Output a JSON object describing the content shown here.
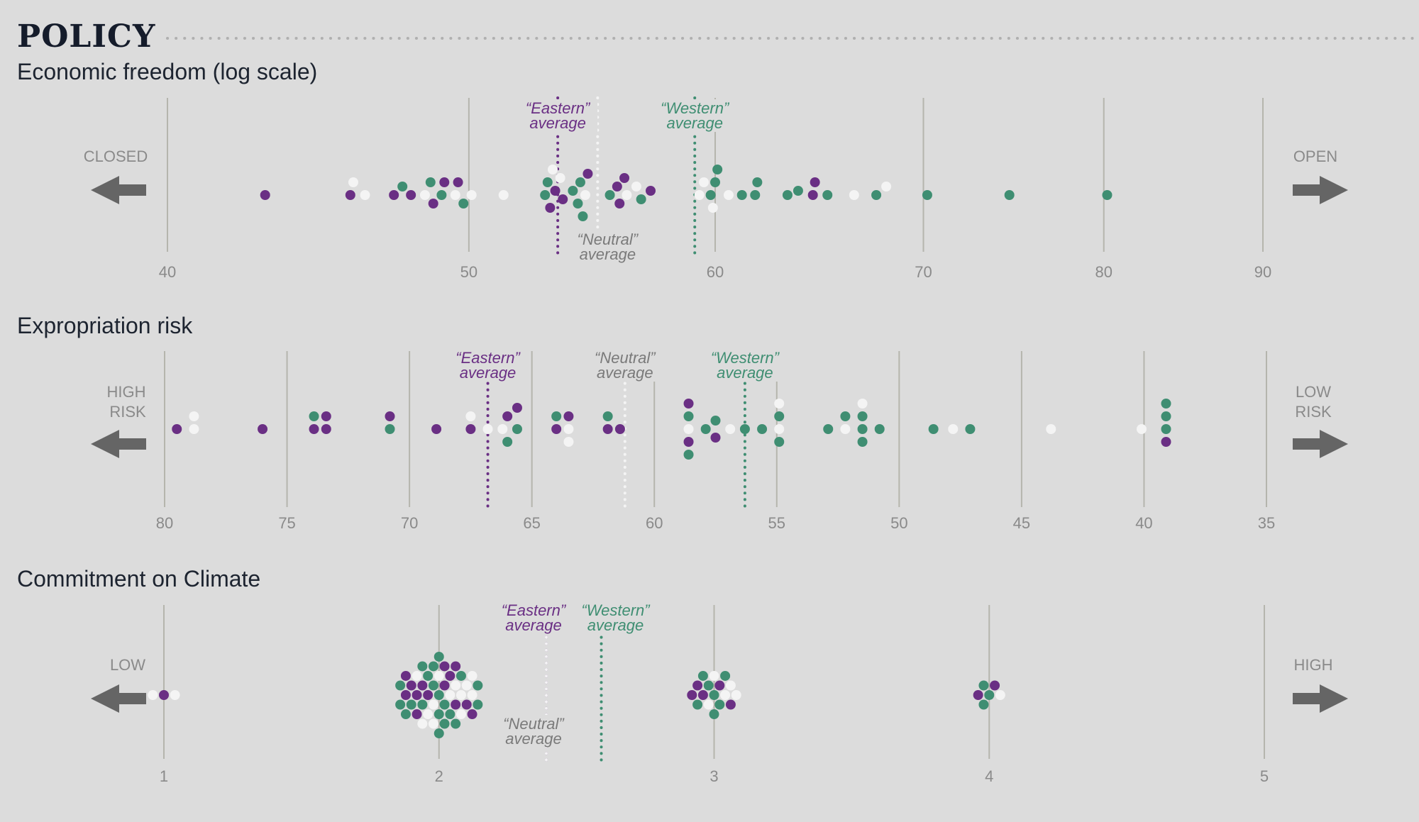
{
  "title": "POLICY",
  "colors": {
    "eastern": "#6a2f84",
    "western": "#3f8e72",
    "neutral": "#f4f4f4",
    "grid": "#b5b5ad",
    "arrow": "#656565",
    "neutral_label": "#7a7a7a",
    "background": "#dcdcdc"
  },
  "panels": [
    {
      "label": "Economic freedom (log scale)",
      "left_label": "CLOSED",
      "right_label": "OPEN",
      "eastern_label": "“Eastern” average",
      "western_label": "“Western” average",
      "neutral_label": "“Neutral” average"
    },
    {
      "label": "Expropriation risk",
      "left_label": "HIGH RISK",
      "right_label": "LOW RISK",
      "eastern_label": "“Eastern” average",
      "western_label": "“Western” average",
      "neutral_label": "“Neutral” average"
    },
    {
      "label": "Commitment on Climate",
      "left_label": "LOW",
      "right_label": "HIGH",
      "eastern_label": "“Eastern” average",
      "western_label": "“Western” average",
      "neutral_label": "“Neutral” average"
    }
  ],
  "chart_data": [
    {
      "type": "scatter",
      "title": "Economic freedom (log scale)",
      "scale": "log",
      "ticks": [
        40,
        50,
        60,
        70,
        80,
        90
      ],
      "xlim": [
        40,
        90
      ],
      "averages": {
        "eastern": 53.4,
        "neutral": 55.0,
        "western": 59.1
      },
      "points": [
        {
          "v": 43.0,
          "g": "eastern"
        },
        {
          "v": 45.8,
          "g": "eastern"
        },
        {
          "v": 45.9,
          "g": "neutral"
        },
        {
          "v": 46.3,
          "g": "neutral"
        },
        {
          "v": 47.3,
          "g": "eastern"
        },
        {
          "v": 47.6,
          "g": "western"
        },
        {
          "v": 47.9,
          "g": "eastern"
        },
        {
          "v": 48.4,
          "g": "neutral"
        },
        {
          "v": 48.6,
          "g": "western"
        },
        {
          "v": 48.7,
          "g": "eastern"
        },
        {
          "v": 49.0,
          "g": "western"
        },
        {
          "v": 49.1,
          "g": "eastern"
        },
        {
          "v": 49.5,
          "g": "neutral"
        },
        {
          "v": 49.6,
          "g": "eastern"
        },
        {
          "v": 49.8,
          "g": "western"
        },
        {
          "v": 50.1,
          "g": "neutral"
        },
        {
          "v": 51.3,
          "g": "neutral"
        },
        {
          "v": 52.9,
          "g": "western"
        },
        {
          "v": 53.0,
          "g": "western"
        },
        {
          "v": 53.1,
          "g": "eastern"
        },
        {
          "v": 53.2,
          "g": "neutral"
        },
        {
          "v": 53.3,
          "g": "eastern"
        },
        {
          "v": 53.5,
          "g": "neutral"
        },
        {
          "v": 53.6,
          "g": "eastern"
        },
        {
          "v": 54.0,
          "g": "western"
        },
        {
          "v": 54.2,
          "g": "western"
        },
        {
          "v": 54.3,
          "g": "western"
        },
        {
          "v": 54.4,
          "g": "western"
        },
        {
          "v": 54.5,
          "g": "neutral"
        },
        {
          "v": 54.6,
          "g": "eastern"
        },
        {
          "v": 55.5,
          "g": "western"
        },
        {
          "v": 55.8,
          "g": "eastern"
        },
        {
          "v": 55.9,
          "g": "eastern"
        },
        {
          "v": 56.1,
          "g": "eastern"
        },
        {
          "v": 56.2,
          "g": "neutral"
        },
        {
          "v": 56.6,
          "g": "neutral"
        },
        {
          "v": 56.8,
          "g": "western"
        },
        {
          "v": 57.2,
          "g": "eastern"
        },
        {
          "v": 59.3,
          "g": "neutral"
        },
        {
          "v": 59.5,
          "g": "neutral"
        },
        {
          "v": 59.8,
          "g": "western"
        },
        {
          "v": 59.9,
          "g": "neutral"
        },
        {
          "v": 60.0,
          "g": "western"
        },
        {
          "v": 60.1,
          "g": "western"
        },
        {
          "v": 60.6,
          "g": "neutral"
        },
        {
          "v": 61.2,
          "g": "western"
        },
        {
          "v": 61.8,
          "g": "western"
        },
        {
          "v": 61.9,
          "g": "western"
        },
        {
          "v": 63.3,
          "g": "western"
        },
        {
          "v": 63.8,
          "g": "western"
        },
        {
          "v": 64.5,
          "g": "eastern"
        },
        {
          "v": 64.6,
          "g": "eastern"
        },
        {
          "v": 65.2,
          "g": "western"
        },
        {
          "v": 66.5,
          "g": "neutral"
        },
        {
          "v": 67.6,
          "g": "western"
        },
        {
          "v": 68.1,
          "g": "neutral"
        },
        {
          "v": 70.2,
          "g": "western"
        },
        {
          "v": 74.6,
          "g": "western"
        },
        {
          "v": 80.2,
          "g": "western"
        }
      ]
    },
    {
      "type": "scatter",
      "title": "Expropriation risk",
      "reversed": true,
      "ticks": [
        80,
        75,
        70,
        65,
        60,
        55,
        50,
        45,
        40,
        35
      ],
      "xlim": [
        80,
        35
      ],
      "averages": {
        "eastern": 66.8,
        "neutral": 61.2,
        "western": 56.3
      },
      "points": [
        {
          "v": 79.5,
          "g": "eastern"
        },
        {
          "v": 78.8,
          "g": "neutral"
        },
        {
          "v": 78.8,
          "g": "neutral"
        },
        {
          "v": 76.0,
          "g": "eastern"
        },
        {
          "v": 73.9,
          "g": "eastern"
        },
        {
          "v": 73.9,
          "g": "western"
        },
        {
          "v": 73.4,
          "g": "eastern"
        },
        {
          "v": 73.4,
          "g": "eastern"
        },
        {
          "v": 70.8,
          "g": "western"
        },
        {
          "v": 70.8,
          "g": "eastern"
        },
        {
          "v": 68.9,
          "g": "eastern"
        },
        {
          "v": 67.5,
          "g": "eastern"
        },
        {
          "v": 67.5,
          "g": "neutral"
        },
        {
          "v": 66.8,
          "g": "neutral"
        },
        {
          "v": 66.2,
          "g": "neutral"
        },
        {
          "v": 66.0,
          "g": "eastern"
        },
        {
          "v": 66.0,
          "g": "western"
        },
        {
          "v": 65.6,
          "g": "western"
        },
        {
          "v": 65.6,
          "g": "eastern"
        },
        {
          "v": 64.0,
          "g": "eastern"
        },
        {
          "v": 64.0,
          "g": "western"
        },
        {
          "v": 63.5,
          "g": "neutral"
        },
        {
          "v": 63.5,
          "g": "eastern"
        },
        {
          "v": 63.5,
          "g": "neutral"
        },
        {
          "v": 61.9,
          "g": "eastern"
        },
        {
          "v": 61.9,
          "g": "western"
        },
        {
          "v": 61.4,
          "g": "eastern"
        },
        {
          "v": 58.6,
          "g": "neutral"
        },
        {
          "v": 58.6,
          "g": "western"
        },
        {
          "v": 58.6,
          "g": "eastern"
        },
        {
          "v": 58.6,
          "g": "eastern"
        },
        {
          "v": 58.6,
          "g": "western"
        },
        {
          "v": 57.9,
          "g": "western"
        },
        {
          "v": 57.5,
          "g": "western"
        },
        {
          "v": 57.5,
          "g": "eastern"
        },
        {
          "v": 56.9,
          "g": "neutral"
        },
        {
          "v": 56.3,
          "g": "western"
        },
        {
          "v": 55.6,
          "g": "western"
        },
        {
          "v": 54.9,
          "g": "neutral"
        },
        {
          "v": 54.9,
          "g": "western"
        },
        {
          "v": 54.9,
          "g": "western"
        },
        {
          "v": 54.9,
          "g": "neutral"
        },
        {
          "v": 52.9,
          "g": "western"
        },
        {
          "v": 52.2,
          "g": "neutral"
        },
        {
          "v": 52.2,
          "g": "western"
        },
        {
          "v": 51.5,
          "g": "western"
        },
        {
          "v": 51.5,
          "g": "western"
        },
        {
          "v": 51.5,
          "g": "western"
        },
        {
          "v": 51.5,
          "g": "neutral"
        },
        {
          "v": 50.8,
          "g": "western"
        },
        {
          "v": 48.6,
          "g": "western"
        },
        {
          "v": 47.8,
          "g": "neutral"
        },
        {
          "v": 47.1,
          "g": "western"
        },
        {
          "v": 43.8,
          "g": "neutral"
        },
        {
          "v": 40.1,
          "g": "neutral"
        },
        {
          "v": 39.1,
          "g": "western"
        },
        {
          "v": 39.1,
          "g": "western"
        },
        {
          "v": 39.1,
          "g": "eastern"
        },
        {
          "v": 39.1,
          "g": "western"
        }
      ]
    },
    {
      "type": "scatter",
      "title": "Commitment on Climate",
      "ticks": [
        1,
        2,
        3,
        4,
        5
      ],
      "xlim": [
        1,
        5
      ],
      "averages": {
        "eastern": 2.39,
        "neutral": 2.39,
        "western": 2.59
      },
      "clusters": [
        {
          "v": 1,
          "eastern": 1,
          "western": 0,
          "neutral": 2
        },
        {
          "v": 2,
          "eastern": 14,
          "western": 20,
          "neutral": 13
        },
        {
          "v": 3,
          "eastern": 5,
          "western": 7,
          "neutral": 5
        },
        {
          "v": 4,
          "eastern": 2,
          "western": 3,
          "neutral": 1
        }
      ]
    }
  ]
}
